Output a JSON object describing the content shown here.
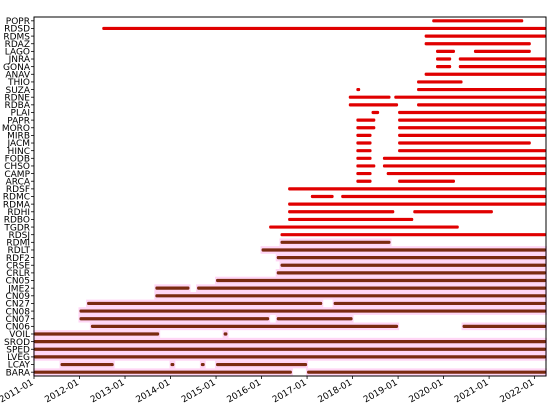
{
  "chart_data": {
    "type": "timeline",
    "title": "",
    "xlabel": "",
    "ylabel": "",
    "xlim": [
      "2011-01",
      "2022-04"
    ],
    "x_ticks": [
      "2011-01",
      "2012-01",
      "2013-01",
      "2014-01",
      "2015-01",
      "2016-01",
      "2017-01",
      "2018-01",
      "2019-01",
      "2020-01",
      "2021-01",
      "2022-01"
    ],
    "stations": [
      "POPR",
      "RDSD",
      "RDMS",
      "RDAZ",
      "LAGO",
      "JNRA",
      "GONA",
      "ANAV",
      "THIO",
      "SUZA",
      "RDNE",
      "RDBA",
      "PLAI",
      "PAPR",
      "MORO",
      "MIRB",
      "JACM",
      "HINC",
      "FODB",
      "CHSO",
      "CAMP",
      "ARCA",
      "RDSF",
      "RDMC",
      "RDMA",
      "RDHI",
      "RDBO",
      "TGDR",
      "RDSJ",
      "RDMI",
      "RDLT",
      "RDF2",
      "CRSE",
      "CRLR",
      "CN05",
      "JME2",
      "CN09",
      "CN27",
      "CN08",
      "CN07",
      "CN06",
      "VOIL",
      "SROD",
      "SPED",
      "LVEG",
      "LCAY",
      "BARA"
    ],
    "series": [
      {
        "name": "",
        "color": "#e00000",
        "note_color_role": "red"
      },
      {
        "name": "",
        "color": "#7a2a10",
        "note_color_role": "dark"
      }
    ],
    "bar_colors": {
      "red": "#e00000",
      "dark": "#7a2a10",
      "halo": "#ffd6f5"
    },
    "grid": false,
    "bars": {
      "POPR": [
        [
          "2019-10",
          "2021-10",
          "red"
        ]
      ],
      "RDSD": [
        [
          "2012-07",
          "2022-04",
          "red"
        ]
      ],
      "RDMS": [
        [
          "2019-08",
          "2022-04",
          "red"
        ]
      ],
      "RDAZ": [
        [
          "2019-08",
          "2021-12",
          "red"
        ]
      ],
      "LAGO": [
        [
          "2019-11",
          "2020-04",
          "red"
        ],
        [
          "2020-09",
          "2021-12",
          "red"
        ]
      ],
      "JNRA": [
        [
          "2019-11",
          "2020-03",
          "red"
        ],
        [
          "2020-05",
          "2022-04",
          "red"
        ]
      ],
      "GONA": [
        [
          "2019-11",
          "2020-03",
          "red"
        ],
        [
          "2020-05",
          "2022-04",
          "red"
        ]
      ],
      "ANAV": [
        [
          "2019-08",
          "2022-04",
          "red"
        ]
      ],
      "THIO": [
        [
          "2019-06",
          "2020-06",
          "red"
        ]
      ],
      "SUZA": [
        [
          "2018-02",
          "2018-03",
          "red"
        ],
        [
          "2019-06",
          "2022-04",
          "red"
        ]
      ],
      "RDNE": [
        [
          "2017-12",
          "2018-11",
          "red"
        ],
        [
          "2018-12",
          "2022-04",
          "red"
        ]
      ],
      "RDBA": [
        [
          "2017-12",
          "2019-01",
          "red"
        ],
        [
          "2019-06",
          "2022-04",
          "red"
        ]
      ],
      "PLAI": [
        [
          "2018-06",
          "2018-08",
          "red"
        ],
        [
          "2019-01",
          "2022-04",
          "red"
        ]
      ],
      "PAPR": [
        [
          "2018-02",
          "2018-07",
          "red"
        ],
        [
          "2019-01",
          "2022-04",
          "red"
        ]
      ],
      "MORO": [
        [
          "2018-02",
          "2018-07",
          "red"
        ],
        [
          "2019-01",
          "2022-04",
          "red"
        ]
      ],
      "MIRB": [
        [
          "2018-02",
          "2018-06",
          "red"
        ],
        [
          "2019-01",
          "2022-04",
          "red"
        ]
      ],
      "JACM": [
        [
          "2018-02",
          "2018-06",
          "red"
        ],
        [
          "2019-01",
          "2021-12",
          "red"
        ]
      ],
      "HINC": [
        [
          "2018-02",
          "2018-06",
          "red"
        ],
        [
          "2019-01",
          "2022-04",
          "red"
        ]
      ],
      "FODB": [
        [
          "2018-02",
          "2018-06",
          "red"
        ],
        [
          "2018-09",
          "2022-04",
          "red"
        ]
      ],
      "CHSO": [
        [
          "2018-02",
          "2018-07",
          "red"
        ],
        [
          "2018-09",
          "2022-04",
          "red"
        ]
      ],
      "CAMP": [
        [
          "2018-02",
          "2018-06",
          "red"
        ],
        [
          "2018-10",
          "2022-04",
          "red"
        ]
      ],
      "ARCA": [
        [
          "2018-02",
          "2018-06",
          "red"
        ],
        [
          "2019-01",
          "2020-04",
          "red"
        ]
      ],
      "RDSF": [
        [
          "2016-08",
          "2022-04",
          "red"
        ]
      ],
      "RDMC": [
        [
          "2017-02",
          "2017-08",
          "red"
        ],
        [
          "2017-10",
          "2022-04",
          "red"
        ]
      ],
      "RDMA": [
        [
          "2016-08",
          "2022-04",
          "red"
        ]
      ],
      "RDHI": [
        [
          "2016-08",
          "2018-12",
          "red"
        ],
        [
          "2019-05",
          "2021-02",
          "red"
        ]
      ],
      "RDBO": [
        [
          "2016-08",
          "2019-05",
          "red"
        ]
      ],
      "TGDR": [
        [
          "2016-03",
          "2020-05",
          "red"
        ]
      ],
      "RDSJ": [
        [
          "2016-06",
          "2022-04",
          "red"
        ]
      ],
      "RDMI": [
        [
          "2016-06",
          "2018-11",
          "dark"
        ]
      ],
      "RDLT": [
        [
          "2016-01",
          "2022-04",
          "dark"
        ]
      ],
      "RDF2": [
        [
          "2016-05",
          "2022-04",
          "dark"
        ]
      ],
      "CRSE": [
        [
          "2016-06",
          "2022-04",
          "dark"
        ]
      ],
      "CRLR": [
        [
          "2016-05",
          "2022-04",
          "dark"
        ]
      ],
      "CN05": [
        [
          "2015-01",
          "2022-04",
          "dark"
        ]
      ],
      "JME2": [
        [
          "2013-09",
          "2014-06",
          "dark"
        ],
        [
          "2014-08",
          "2022-04",
          "dark"
        ]
      ],
      "CN09": [
        [
          "2013-09",
          "2022-04",
          "dark"
        ]
      ],
      "CN27": [
        [
          "2012-03",
          "2017-05",
          "dark"
        ],
        [
          "2017-08",
          "2022-04",
          "dark"
        ]
      ],
      "CN08": [
        [
          "2012-01",
          "2022-04",
          "dark"
        ]
      ],
      "CN07": [
        [
          "2012-01",
          "2016-03",
          "dark"
        ],
        [
          "2016-05",
          "2018-01",
          "dark"
        ]
      ],
      "CN06": [
        [
          "2012-04",
          "2019-01",
          "dark"
        ],
        [
          "2020-06",
          "2022-04",
          "dark"
        ]
      ],
      "VOIL": [
        [
          "2011-01",
          "2013-10",
          "dark"
        ],
        [
          "2015-03",
          "2015-04",
          "dark"
        ]
      ],
      "SROD": [
        [
          "2011-01",
          "2022-04",
          "dark"
        ]
      ],
      "SPED": [
        [
          "2011-01",
          "2022-04",
          "dark"
        ]
      ],
      "LVEG": [
        [
          "2011-01",
          "2022-04",
          "dark"
        ]
      ],
      "LCAY": [
        [
          "2011-08",
          "2012-10",
          "dark"
        ],
        [
          "2014-01",
          "2014-02",
          "dark"
        ],
        [
          "2014-09",
          "2014-10",
          "dark"
        ],
        [
          "2015-01",
          "2017-01",
          "dark"
        ]
      ],
      "BARA": [
        [
          "2011-01",
          "2016-09",
          "dark"
        ],
        [
          "2017-01",
          "2022-04",
          "dark"
        ]
      ]
    }
  }
}
